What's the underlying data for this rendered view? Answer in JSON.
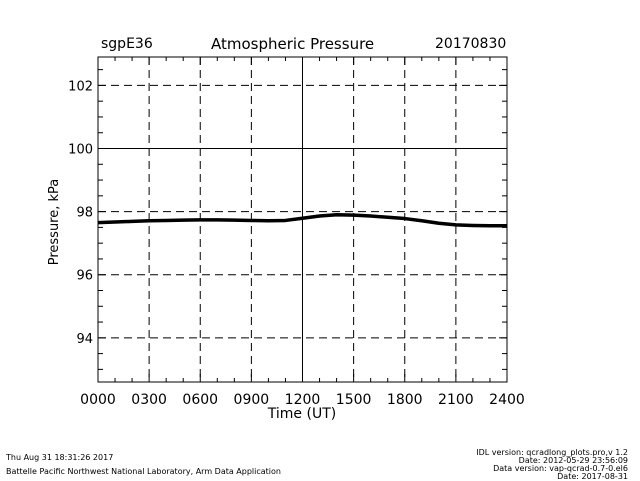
{
  "chart_data": {
    "type": "line",
    "site": "sgpE36",
    "title": "Atmospheric Pressure",
    "date": "20170830",
    "xlabel": "Time (UT)",
    "ylabel": "Pressure, kPa",
    "xlim": [
      0,
      24
    ],
    "ylim": [
      92.6,
      102.9
    ],
    "x_ticks": [
      0,
      3,
      6,
      9,
      12,
      15,
      18,
      21,
      24
    ],
    "x_tick_labels": [
      "0000",
      "0300",
      "0600",
      "0900",
      "1200",
      "1500",
      "1800",
      "2100",
      "2400"
    ],
    "y_ticks": [
      94,
      96,
      98,
      100,
      102
    ],
    "y_tick_labels": [
      "94",
      "96",
      "98",
      "100",
      "102"
    ],
    "grid": true,
    "series": [
      {
        "x": [
          0,
          1,
          2,
          3,
          4,
          5,
          6,
          7,
          8,
          9,
          10,
          11,
          12,
          13,
          14,
          15,
          16,
          17,
          18,
          19,
          20,
          21,
          22,
          23,
          24
        ],
        "y": [
          97.65,
          97.67,
          97.69,
          97.71,
          97.72,
          97.73,
          97.74,
          97.74,
          97.73,
          97.72,
          97.71,
          97.72,
          97.79,
          97.86,
          97.9,
          97.89,
          97.86,
          97.82,
          97.78,
          97.71,
          97.63,
          97.58,
          97.56,
          97.55,
          97.55
        ]
      }
    ]
  },
  "footer": {
    "timestamp": "Thu Aug 31 18:31:26 2017",
    "institution": "Battelle Pacific Northwest National Laboratory, Arm Data Application",
    "idl_version": "IDL version: qcradlong_plots.pro,v 1.2",
    "idl_date": "Date: 2012-05-29 23:56:09",
    "data_version": "Data version: vap-qcrad-0.7-0.el6",
    "data_date": "Date: 2017-08-31"
  }
}
